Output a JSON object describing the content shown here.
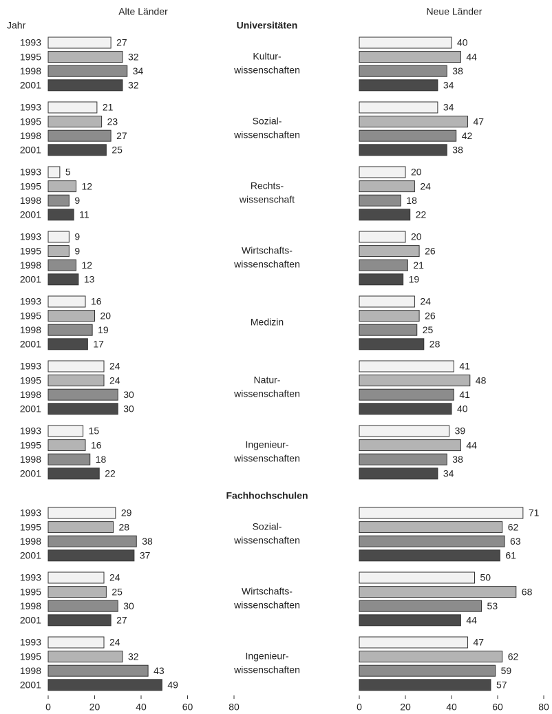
{
  "y_label": "Jahr",
  "sections": [
    {
      "title": "Universitäten",
      "categories": [
        [
          "Kultur-",
          "wissenschaften"
        ],
        [
          "Sozial-",
          "wissenschaften"
        ],
        [
          "Rechts-",
          "wissenschaft"
        ],
        [
          "Wirtschafts-",
          "wissenschaften"
        ],
        [
          "Medizin"
        ],
        [
          "Natur-",
          "wissenschaften"
        ],
        [
          "Ingenieur-",
          "wissenschaften"
        ]
      ]
    },
    {
      "title": "Fachhochschulen",
      "categories": [
        [
          "Sozial-",
          "wissenschaften"
        ],
        [
          "Wirtschafts-",
          "wissenschaften"
        ],
        [
          "Ingenieur-",
          "wissenschaften"
        ]
      ]
    }
  ],
  "chart_data": [
    {
      "type": "bar",
      "orientation": "horizontal",
      "title": "Alte Länder",
      "series": [
        {
          "name": "1993",
          "color": "#f2f2f2",
          "values": [
            27,
            21,
            5,
            9,
            16,
            24,
            15,
            29,
            24,
            24
          ]
        },
        {
          "name": "1995",
          "color": "#b4b4b4",
          "values": [
            32,
            23,
            12,
            9,
            20,
            24,
            16,
            28,
            25,
            32
          ]
        },
        {
          "name": "1998",
          "color": "#8c8c8c",
          "values": [
            34,
            27,
            9,
            12,
            19,
            30,
            18,
            38,
            30,
            43
          ]
        },
        {
          "name": "2001",
          "color": "#4a4a4a",
          "values": [
            32,
            25,
            11,
            13,
            17,
            30,
            22,
            37,
            27,
            49
          ]
        }
      ],
      "xlim": [
        0,
        80
      ],
      "xticks": [
        0,
        20,
        40,
        60,
        80
      ]
    },
    {
      "type": "bar",
      "orientation": "horizontal",
      "title": "Neue Länder",
      "series": [
        {
          "color": "#f2f2f2",
          "values": [
            40,
            34,
            20,
            20,
            24,
            41,
            39,
            71,
            50,
            47
          ]
        },
        {
          "color": "#b4b4b4",
          "values": [
            44,
            47,
            24,
            26,
            26,
            48,
            44,
            62,
            68,
            62
          ]
        },
        {
          "color": "#8c8c8c",
          "values": [
            38,
            42,
            18,
            21,
            25,
            41,
            38,
            63,
            53,
            59
          ]
        },
        {
          "color": "#4a4a4a",
          "values": [
            34,
            38,
            22,
            19,
            28,
            40,
            34,
            61,
            44,
            57
          ]
        }
      ],
      "xlim": [
        0,
        80
      ],
      "xticks": [
        0,
        20,
        40,
        60,
        80
      ]
    }
  ]
}
